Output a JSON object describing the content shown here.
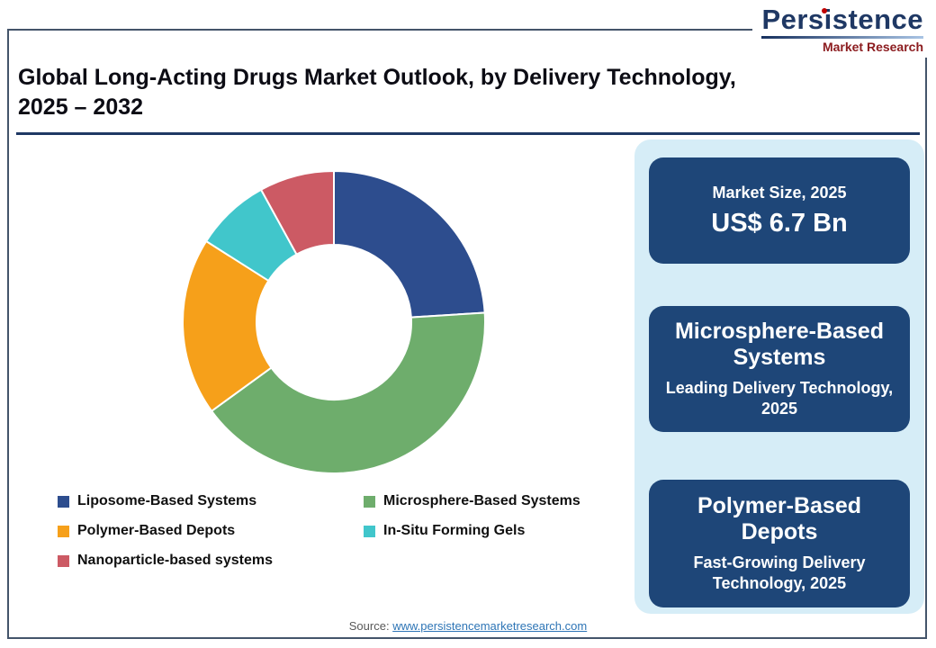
{
  "logo": {
    "brand": "Persistence",
    "sub": "Market Research"
  },
  "header": {
    "title_line1": "Global Long-Acting Drugs Market Outlook, by Delivery Technology,",
    "title_line2": "2025 – 2032"
  },
  "chart_data": {
    "type": "pie",
    "variant": "donut",
    "title": "Global Long-Acting Drugs Market Outlook, by Delivery Technology, 2025 – 2032",
    "categories": [
      "Liposome-Based Systems",
      "Microsphere-Based Systems",
      "Polymer-Based Depots",
      "In-Situ Forming Gels",
      "Nanoparticle-based systems"
    ],
    "values": [
      24,
      41,
      19,
      8,
      8
    ],
    "colors": [
      "#2d4d8e",
      "#6ead6c",
      "#f6a01a",
      "#41c6cb",
      "#cc5a64"
    ],
    "start_angle_deg": 0,
    "direction": "clockwise",
    "legend_position": "bottom"
  },
  "panel": {
    "cards": [
      {
        "title": "Market Size, 2025",
        "value": "US$ 6.7 Bn"
      },
      {
        "title": "Microsphere-Based Systems",
        "subtitle": "Leading Delivery Technology, 2025"
      },
      {
        "title": "Polymer-Based Depots",
        "subtitle": "Fast-Growing Delivery Technology, 2025"
      }
    ]
  },
  "footer": {
    "source_label": "Source: ",
    "source_link": "www.persistencemarketresearch.com"
  },
  "colors": {
    "accent_navy": "#1f3864",
    "card_navy": "#1e4678",
    "panel_blue": "#d6edf7",
    "logo_red": "#c00000",
    "logo_maroon": "#8c1d20",
    "frame_border": "#44546a",
    "link_blue": "#2e75b6"
  }
}
